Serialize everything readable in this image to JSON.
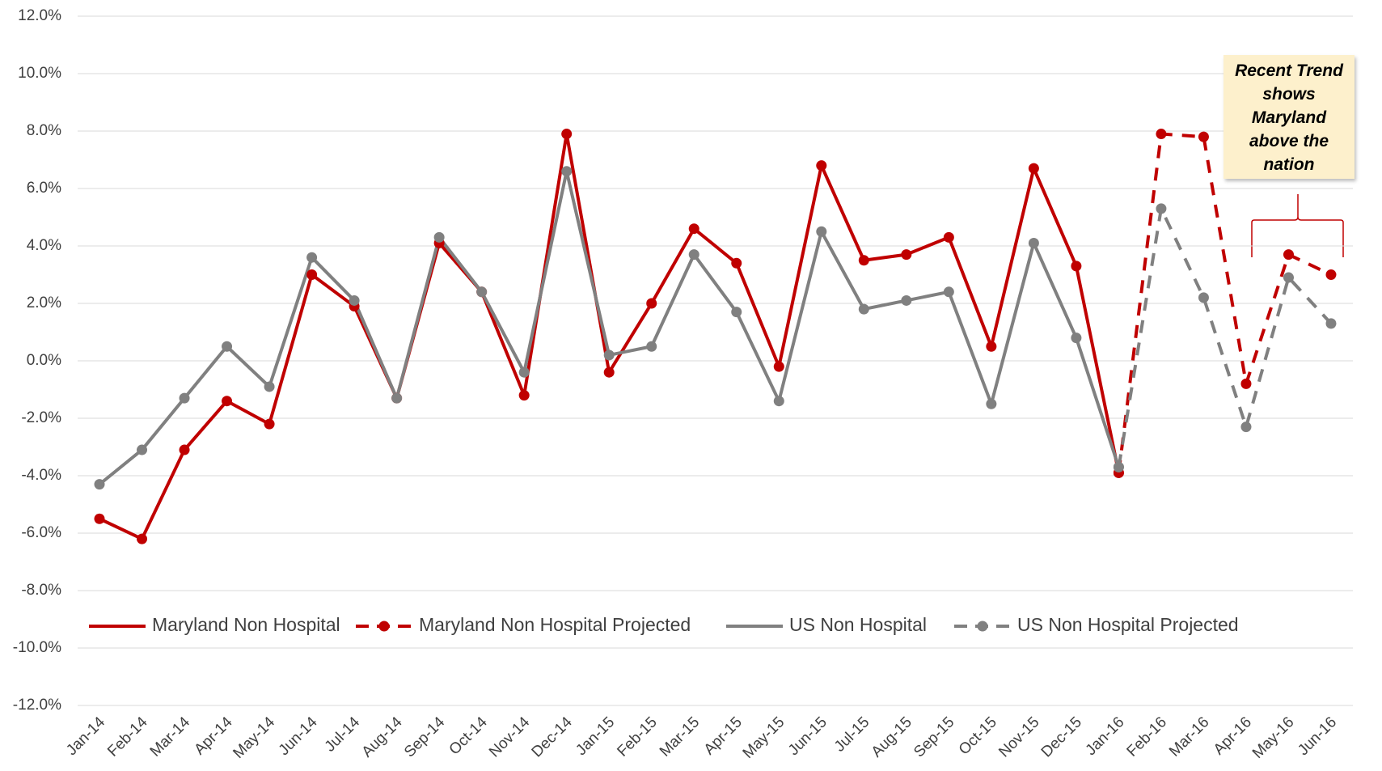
{
  "chart_data": {
    "type": "line",
    "annotation": "Recent Trend shows Maryland above the nation",
    "categories": [
      "Jan-14",
      "Feb-14",
      "Mar-14",
      "Apr-14",
      "May-14",
      "Jun-14",
      "Jul-14",
      "Aug-14",
      "Sep-14",
      "Oct-14",
      "Nov-14",
      "Dec-14",
      "Jan-15",
      "Feb-15",
      "Mar-15",
      "Apr-15",
      "May-15",
      "Jun-15",
      "Jul-15",
      "Aug-15",
      "Sep-15",
      "Oct-15",
      "Nov-15",
      "Dec-15",
      "Jan-16",
      "Feb-16",
      "Mar-16",
      "Apr-16",
      "May-16",
      "Jun-16"
    ],
    "series": [
      {
        "name": "Maryland Non Hospital",
        "color": "#c00000",
        "dashed": false,
        "values": [
          -5.5,
          -6.2,
          -3.1,
          -1.4,
          -2.2,
          3.0,
          1.9,
          -1.3,
          4.1,
          2.4,
          -1.2,
          7.9,
          -0.4,
          2.0,
          4.6,
          3.4,
          -0.2,
          6.8,
          3.5,
          3.7,
          4.3,
          0.5,
          6.7,
          3.3,
          -3.9,
          null,
          null,
          null,
          null,
          null
        ]
      },
      {
        "name": "Maryland Non Hospital Projected",
        "color": "#c00000",
        "dashed": true,
        "values": [
          null,
          null,
          null,
          null,
          null,
          null,
          null,
          null,
          null,
          null,
          null,
          null,
          null,
          null,
          null,
          null,
          null,
          null,
          null,
          null,
          null,
          null,
          null,
          null,
          -3.9,
          7.9,
          7.8,
          -0.8,
          3.7,
          3.0
        ]
      },
      {
        "name": "US Non Hospital",
        "color": "#808080",
        "dashed": false,
        "values": [
          -4.3,
          -3.1,
          -1.3,
          0.5,
          -0.9,
          3.6,
          2.1,
          -1.3,
          4.3,
          2.4,
          -0.4,
          6.6,
          0.2,
          0.5,
          3.7,
          1.7,
          -1.4,
          4.5,
          1.8,
          2.1,
          2.4,
          -1.5,
          4.1,
          0.8,
          -3.7,
          null,
          null,
          null,
          null,
          null
        ]
      },
      {
        "name": "US Non Hospital Projected",
        "color": "#808080",
        "dashed": true,
        "values": [
          null,
          null,
          null,
          null,
          null,
          null,
          null,
          null,
          null,
          null,
          null,
          null,
          null,
          null,
          null,
          null,
          null,
          null,
          null,
          null,
          null,
          null,
          null,
          null,
          -3.7,
          5.3,
          2.2,
          -2.3,
          2.9,
          1.3
        ]
      }
    ],
    "ylim": [
      -12,
      12
    ],
    "yticks": [
      {
        "value": -12,
        "label": "-12.0%"
      },
      {
        "value": -10,
        "label": "-10.0%"
      },
      {
        "value": -8,
        "label": "-8.0%"
      },
      {
        "value": -6,
        "label": "-6.0%"
      },
      {
        "value": -4,
        "label": "-4.0%"
      },
      {
        "value": -2,
        "label": "-2.0%"
      },
      {
        "value": 0,
        "label": "0.0%"
      },
      {
        "value": 2,
        "label": "2.0%"
      },
      {
        "value": 4,
        "label": "4.0%"
      },
      {
        "value": 6,
        "label": "6.0%"
      },
      {
        "value": 8,
        "label": "8.0%"
      },
      {
        "value": 10,
        "label": "10.0%"
      },
      {
        "value": 12,
        "label": "12.0%"
      }
    ],
    "grid": true
  }
}
